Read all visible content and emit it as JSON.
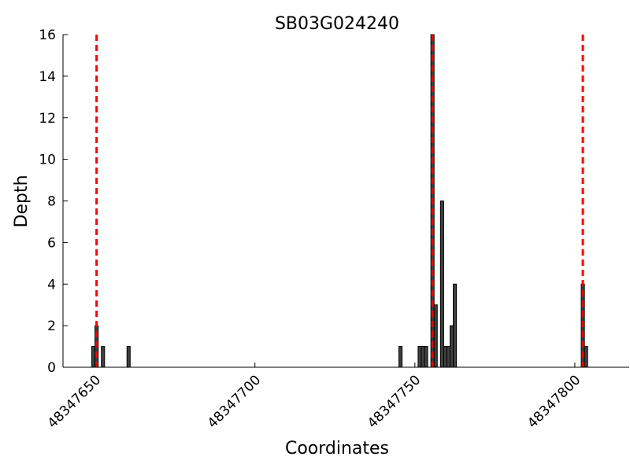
{
  "chart_data": {
    "type": "bar",
    "title": "SB03G024240",
    "xlabel": "Coordinates",
    "ylabel": "Depth",
    "xlim": [
      48347640,
      48347817
    ],
    "ylim": [
      0,
      16
    ],
    "xticks": [
      48347650,
      48347700,
      48347750,
      48347800
    ],
    "yticks": [
      0,
      2,
      4,
      6,
      8,
      10,
      12,
      14,
      16
    ],
    "grid": false,
    "bar_color": "#404040",
    "line_color": "#ff0000",
    "bars": [
      {
        "x": 48347649,
        "y": 1
      },
      {
        "x": 48347650,
        "y": 2
      },
      {
        "x": 48347652,
        "y": 1
      },
      {
        "x": 48347660,
        "y": 1
      },
      {
        "x": 48347745,
        "y": 1
      },
      {
        "x": 48347751,
        "y": 1
      },
      {
        "x": 48347752,
        "y": 1
      },
      {
        "x": 48347753,
        "y": 1
      },
      {
        "x": 48347755,
        "y": 16
      },
      {
        "x": 48347756,
        "y": 3
      },
      {
        "x": 48347758,
        "y": 8
      },
      {
        "x": 48347759,
        "y": 1
      },
      {
        "x": 48347760,
        "y": 1
      },
      {
        "x": 48347761,
        "y": 2
      },
      {
        "x": 48347762,
        "y": 4
      },
      {
        "x": 48347802,
        "y": 4
      },
      {
        "x": 48347803,
        "y": 1
      }
    ],
    "vlines": [
      48347650,
      48347755,
      48347802
    ]
  }
}
